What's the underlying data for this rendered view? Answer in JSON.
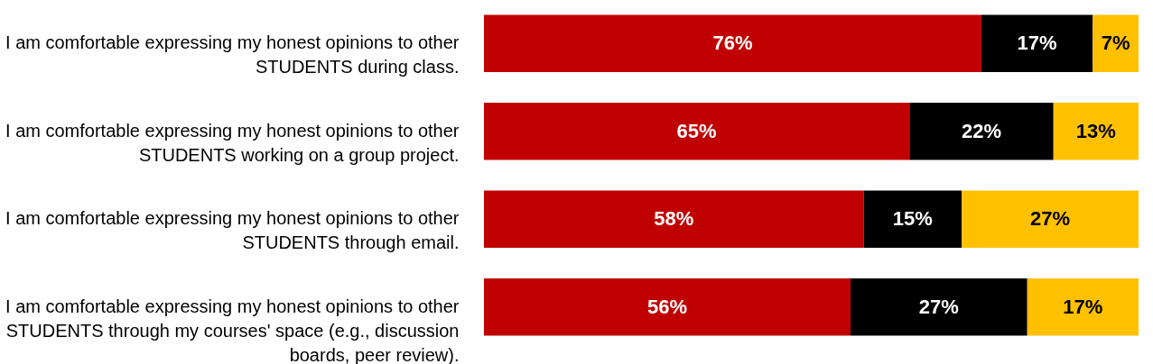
{
  "chart_data": {
    "type": "bar",
    "orientation": "horizontal",
    "stacked": true,
    "categories": [
      "I am comfortable expressing my honest opinions to other STUDENTS during class.",
      "I am comfortable expressing my honest opinions to other STUDENTS working on a group project.",
      "I am comfortable expressing my honest opinions to other STUDENTS through email.",
      "I am comfortable expressing my honest opinions to other STUDENTS through my courses' space (e.g., discussion boards, peer review)."
    ],
    "series": [
      {
        "color": "#c00000",
        "values": [
          76,
          65,
          58,
          56
        ],
        "value_labels": [
          "76%",
          "65%",
          "58%",
          "56%"
        ]
      },
      {
        "color": "#000000",
        "values": [
          17,
          22,
          15,
          27
        ],
        "value_labels": [
          "17%",
          "22%",
          "15%",
          "27%"
        ]
      },
      {
        "color": "#ffc000",
        "values": [
          7,
          13,
          27,
          17
        ],
        "value_labels": [
          "7%",
          "13%",
          "27%",
          "17%"
        ]
      }
    ]
  }
}
